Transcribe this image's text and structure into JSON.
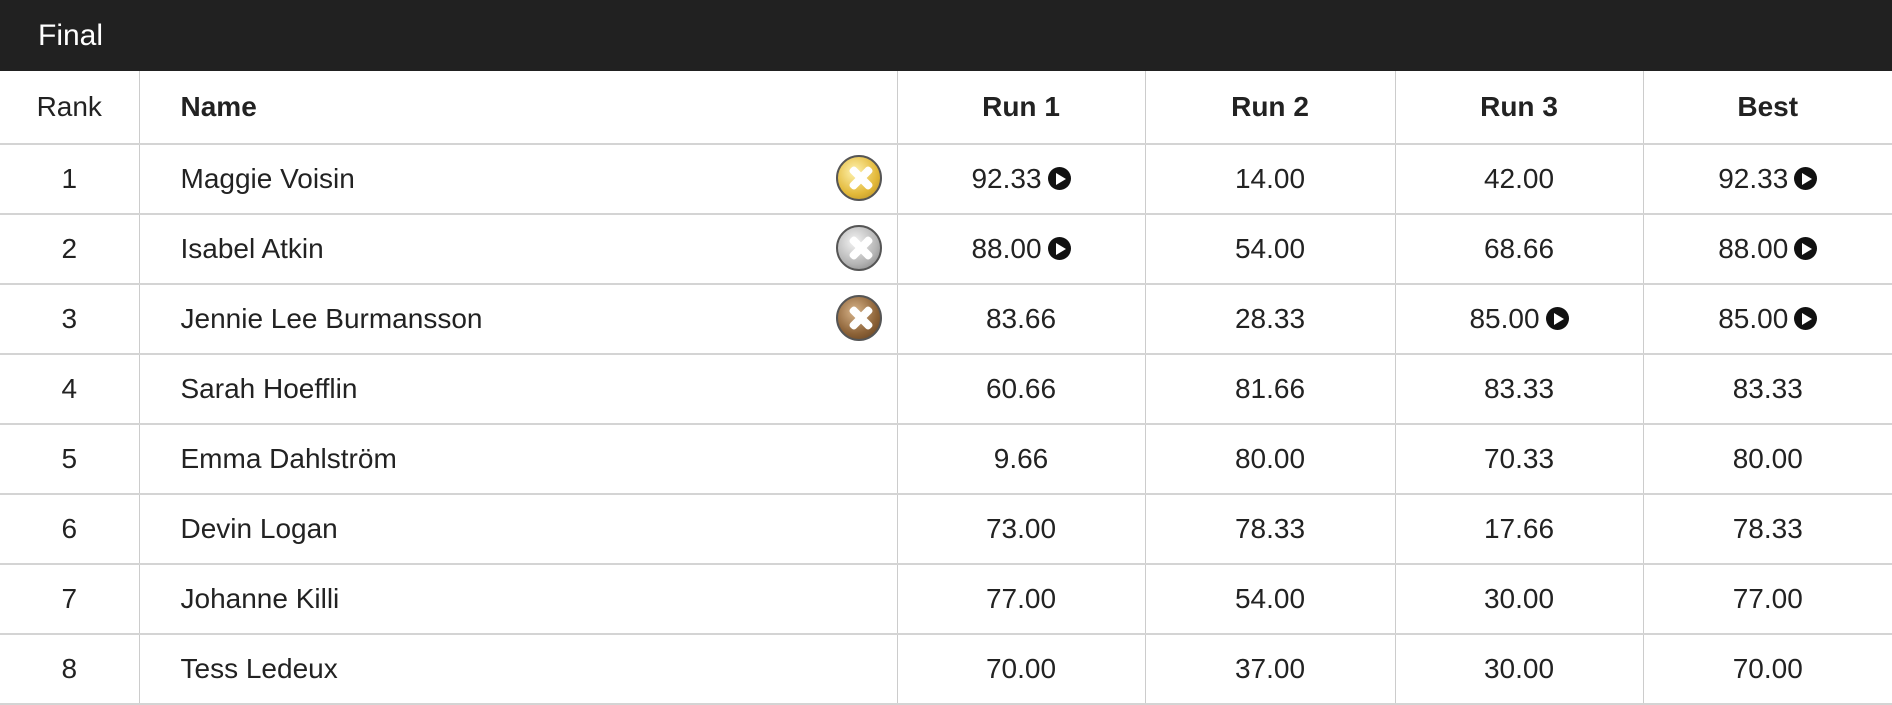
{
  "header": {
    "title": "Final"
  },
  "table": {
    "columns": [
      "Rank",
      "Name",
      "Run 1",
      "Run 2",
      "Run 3",
      "Best"
    ],
    "rows": [
      [
        "1",
        "Maggie Voisin",
        "92.33",
        "14.00",
        "42.00",
        "92.33"
      ],
      [
        "2",
        "Isabel Atkin",
        "88.00",
        "54.00",
        "68.66",
        "88.00"
      ],
      [
        "3",
        "Jennie Lee Burmansson",
        "83.66",
        "28.33",
        "85.00",
        "85.00"
      ],
      [
        "4",
        "Sarah Hoefflin",
        "60.66",
        "81.66",
        "83.33",
        "83.33"
      ],
      [
        "5",
        "Emma Dahlström",
        "9.66",
        "80.00",
        "70.33",
        "80.00"
      ],
      [
        "6",
        "Devin Logan",
        "73.00",
        "78.33",
        "17.66",
        "78.33"
      ],
      [
        "7",
        "Johanne Killi",
        "77.00",
        "54.00",
        "30.00",
        "77.00"
      ],
      [
        "8",
        "Tess Ledeux",
        "70.00",
        "37.00",
        "30.00",
        "70.00"
      ]
    ]
  }
}
